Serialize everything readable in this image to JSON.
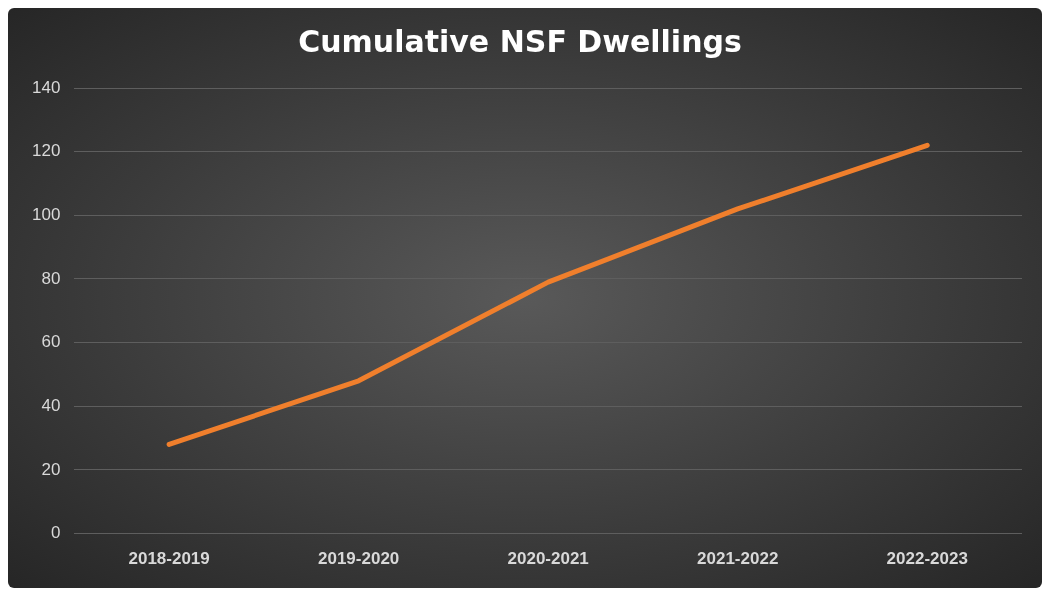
{
  "chart_data": {
    "type": "line",
    "title": "Cumulative NSF Dwellings",
    "categories": [
      "2018-2019",
      "2019-2020",
      "2020-2021",
      "2021-2022",
      "2022-2023"
    ],
    "series": [
      {
        "color": "#f07f2c",
        "values": [
          28,
          48,
          79,
          102,
          122
        ]
      }
    ],
    "ylim": [
      0,
      140
    ],
    "yticks": [
      0,
      20,
      40,
      60,
      80,
      100,
      120,
      140
    ],
    "grid": "y"
  }
}
